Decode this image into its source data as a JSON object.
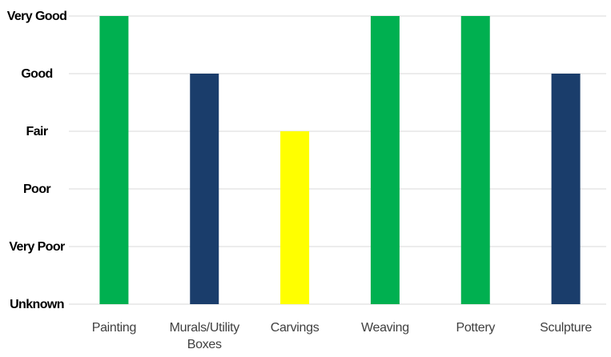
{
  "chart_data": {
    "type": "bar",
    "title": "",
    "xlabel": "",
    "ylabel": "",
    "y_levels": [
      "Unknown",
      "Very Poor",
      "Poor",
      "Fair",
      "Good",
      "Very Good"
    ],
    "categories": [
      "Painting",
      "Murals/Utility Boxes",
      "Carvings",
      "Weaving",
      "Pottery",
      "Sculpture"
    ],
    "category_lines": [
      [
        "Painting"
      ],
      [
        "Murals/Utility",
        "Boxes"
      ],
      [
        "Carvings"
      ],
      [
        "Weaving"
      ],
      [
        "Pottery"
      ],
      [
        "Sculpture"
      ]
    ],
    "values": [
      "Very Good",
      "Good",
      "Fair",
      "Very Good",
      "Very Good",
      "Good"
    ],
    "bar_colors": [
      "#00b050",
      "#1a3d6b",
      "#ffff00",
      "#00b050",
      "#00b050",
      "#1a3d6b"
    ],
    "grid": true,
    "legend": "none"
  }
}
